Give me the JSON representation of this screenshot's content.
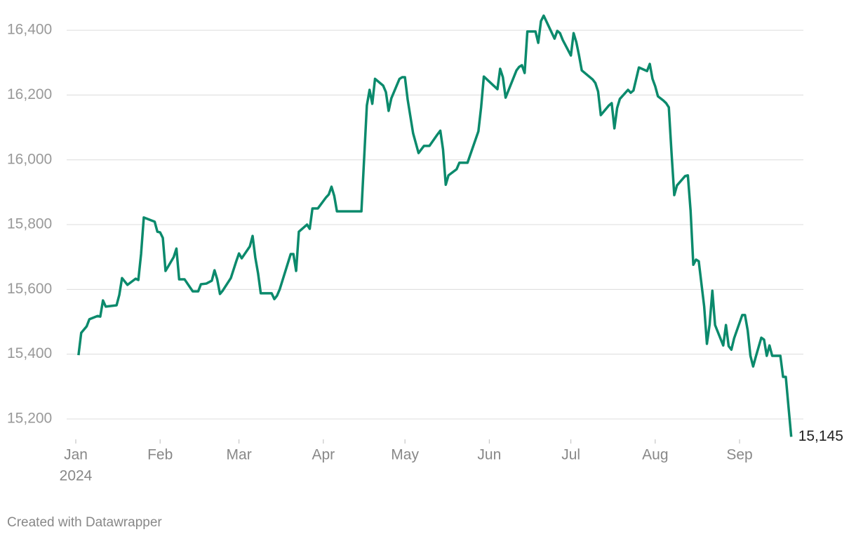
{
  "chart_data": {
    "type": "line",
    "x": [
      1,
      2,
      4,
      5,
      8,
      9,
      10,
      11,
      15,
      16,
      17,
      19,
      22,
      23,
      24,
      25,
      29,
      30,
      31,
      32,
      33,
      36,
      37,
      38,
      40,
      43,
      45,
      46,
      48,
      50,
      51,
      52,
      53,
      54,
      57,
      59,
      60,
      61,
      64,
      65,
      66,
      67,
      68,
      72,
      73,
      74,
      75,
      79,
      80,
      81,
      82,
      85,
      86,
      87,
      89,
      92,
      93,
      94,
      95,
      96,
      105,
      107,
      108,
      109,
      110,
      113,
      114,
      115,
      116,
      119,
      120,
      121,
      122,
      124,
      126,
      128,
      130,
      133,
      134,
      135,
      136,
      137,
      140,
      141,
      144,
      148,
      149,
      150,
      155,
      156,
      157,
      158,
      162,
      163,
      164,
      165,
      166,
      169,
      170,
      171,
      172,
      176,
      177,
      178,
      179,
      182,
      183,
      184,
      185,
      186,
      190,
      191,
      192,
      193,
      196,
      197,
      198,
      199,
      200,
      203,
      204,
      205,
      207,
      210,
      211,
      212,
      213,
      214,
      216,
      217,
      218,
      219,
      220,
      221,
      224,
      225,
      226,
      227,
      228,
      229,
      231,
      232,
      233,
      234,
      235,
      238,
      239,
      240,
      241,
      242,
      245,
      246,
      247,
      248,
      249,
      250,
      252,
      253,
      254,
      255,
      256,
      259,
      260,
      261,
      262,
      263
    ],
    "series": [
      {
        "color": "#0b8a6c",
        "values": [
          15397,
          15466,
          15486,
          15508,
          15518,
          15516,
          15566,
          15547,
          15551,
          15583,
          15635,
          15614,
          15633,
          15629,
          15709,
          15822,
          15809,
          15778,
          15776,
          15759,
          15657,
          15700,
          15726,
          15631,
          15631,
          15594,
          15594,
          15616,
          15618,
          15627,
          15659,
          15631,
          15586,
          15596,
          15635,
          15687,
          15711,
          15696,
          15733,
          15765,
          15698,
          15650,
          15588,
          15588,
          15570,
          15581,
          15601,
          15709,
          15709,
          15657,
          15778,
          15800,
          15787,
          15850,
          15850,
          15884,
          15893,
          15917,
          15889,
          15841,
          15841,
          16168,
          16216,
          16173,
          16250,
          16229,
          16209,
          16151,
          16190,
          16250,
          16255,
          16255,
          16186,
          16082,
          16021,
          16043,
          16043,
          16079,
          16090,
          16032,
          15923,
          15952,
          15971,
          15991,
          15991,
          16088,
          16162,
          16257,
          16218,
          16281,
          16255,
          16192,
          16276,
          16287,
          16292,
          16268,
          16396,
          16396,
          16361,
          16428,
          16445,
          16374,
          16398,
          16391,
          16370,
          16322,
          16391,
          16363,
          16322,
          16276,
          16248,
          16237,
          16211,
          16138,
          16168,
          16175,
          16097,
          16160,
          16188,
          16216,
          16207,
          16214,
          16285,
          16274,
          16296,
          16250,
          16227,
          16196,
          16183,
          16175,
          16162,
          16021,
          15891,
          15921,
          15950,
          15952,
          15843,
          15676,
          15692,
          15687,
          15547,
          15432,
          15492,
          15596,
          15490,
          15427,
          15490,
          15425,
          15414,
          15449,
          15521,
          15521,
          15473,
          15395,
          15362,
          15393,
          15451,
          15445,
          15395,
          15427,
          15395,
          15395,
          15330,
          15330,
          15237,
          15145
        ]
      }
    ],
    "end_label": "15,145",
    "xlim": [
      0,
      263
    ],
    "xticks": [
      {
        "value": 0,
        "label": "Jan"
      },
      {
        "value": 31,
        "label": "Feb"
      },
      {
        "value": 60,
        "label": "Mar"
      },
      {
        "value": 91,
        "label": "Apr"
      },
      {
        "value": 121,
        "label": "May"
      },
      {
        "value": 152,
        "label": "Jun"
      },
      {
        "value": 182,
        "label": "Jul"
      },
      {
        "value": 213,
        "label": "Aug"
      },
      {
        "value": 244,
        "label": "Sep"
      }
    ],
    "x_year_label": "2024",
    "ylim": [
      15140,
      16450
    ],
    "yticks": [
      {
        "value": 15200,
        "label": "15,200"
      },
      {
        "value": 15400,
        "label": "15,400"
      },
      {
        "value": 15600,
        "label": "15,600"
      },
      {
        "value": 15800,
        "label": "15,800"
      },
      {
        "value": 16000,
        "label": "16,000"
      },
      {
        "value": 16200,
        "label": "16,200"
      },
      {
        "value": 16400,
        "label": "16,400"
      }
    ],
    "grid": true,
    "credit": "Created with Datawrapper"
  }
}
